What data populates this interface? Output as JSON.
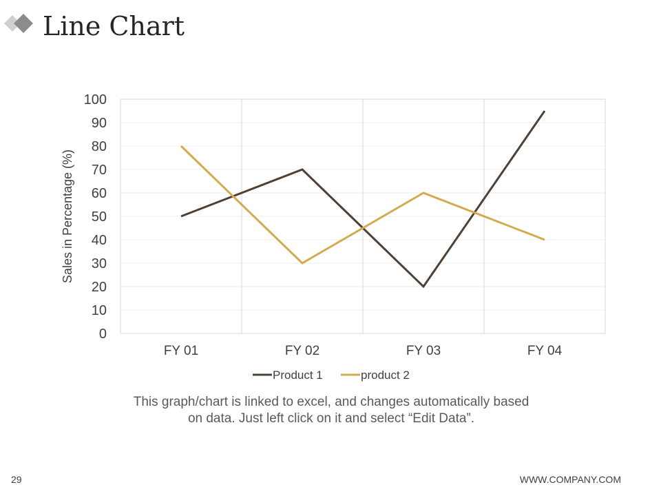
{
  "slide": {
    "title": "Line Chart",
    "caption_line1": "This graph/chart is linked to excel, and changes automatically based",
    "caption_line2": "on data. Just left click on it and select “Edit Data”.",
    "page_number": "29",
    "footer_url": "WWW.COMPANY.COM"
  },
  "chart_data": {
    "type": "line",
    "title": "",
    "xlabel": "",
    "ylabel": "Sales in Percentage (%)",
    "categories": [
      "FY 01",
      "FY 02",
      "FY 03",
      "FY 04"
    ],
    "ylim": [
      0,
      100
    ],
    "yticks": [
      0,
      10,
      20,
      30,
      40,
      50,
      60,
      70,
      80,
      90,
      100
    ],
    "grid": true,
    "legend_position": "bottom",
    "series": [
      {
        "name": "Product 1",
        "values": [
          50,
          70,
          20,
          95
        ],
        "color": "#4f4035"
      },
      {
        "name": "product 2",
        "values": [
          80,
          30,
          60,
          40
        ],
        "color": "#d4aa4f"
      }
    ]
  },
  "colors": {
    "axis_text": "#404040",
    "gridline": "#ececec",
    "category_divider": "#d9d9d9",
    "logo_dark": "#8c8c8c",
    "logo_light": "#c8c8c8"
  }
}
